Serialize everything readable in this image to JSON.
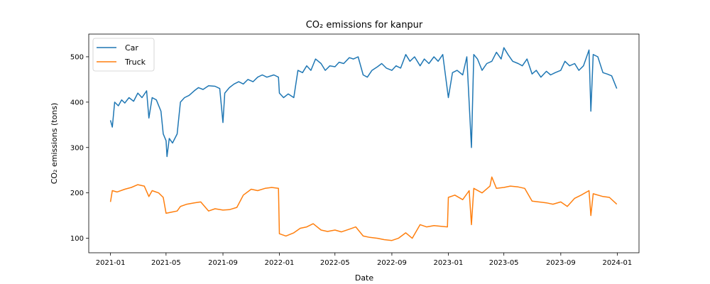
{
  "chart_data": {
    "type": "line",
    "title": "CO₂ emissions for kanpur",
    "xlabel": "Date",
    "ylabel": "CO₂ emissions (tons)",
    "xlim": [
      "2020-11-15",
      "2024-02-17"
    ],
    "ylim": [
      68,
      550
    ],
    "x_ticks": [
      "2021-01",
      "2021-05",
      "2021-09",
      "2022-01",
      "2022-05",
      "2022-09",
      "2023-01",
      "2023-05",
      "2023-09",
      "2024-01"
    ],
    "y_ticks": [
      100,
      200,
      300,
      400,
      500
    ],
    "grid": false,
    "legend_position": "top-left",
    "series": [
      {
        "name": "Car",
        "color": "#1f77b4",
        "points": [
          [
            "2021-01-01",
            360
          ],
          [
            "2021-01-05",
            345
          ],
          [
            "2021-01-10",
            400
          ],
          [
            "2021-01-18",
            392
          ],
          [
            "2021-01-25",
            405
          ],
          [
            "2021-02-01",
            398
          ],
          [
            "2021-02-10",
            410
          ],
          [
            "2021-02-20",
            402
          ],
          [
            "2021-03-01",
            420
          ],
          [
            "2021-03-10",
            410
          ],
          [
            "2021-03-20",
            425
          ],
          [
            "2021-03-25",
            365
          ],
          [
            "2021-04-01",
            410
          ],
          [
            "2021-04-10",
            405
          ],
          [
            "2021-04-20",
            380
          ],
          [
            "2021-04-25",
            330
          ],
          [
            "2021-05-01",
            315
          ],
          [
            "2021-05-03",
            280
          ],
          [
            "2021-05-08",
            320
          ],
          [
            "2021-05-15",
            310
          ],
          [
            "2021-05-25",
            330
          ],
          [
            "2021-06-01",
            400
          ],
          [
            "2021-06-10",
            410
          ],
          [
            "2021-06-20",
            415
          ],
          [
            "2021-07-01",
            425
          ],
          [
            "2021-07-10",
            432
          ],
          [
            "2021-07-20",
            428
          ],
          [
            "2021-08-01",
            436
          ],
          [
            "2021-08-15",
            435
          ],
          [
            "2021-08-25",
            430
          ],
          [
            "2021-09-01",
            355
          ],
          [
            "2021-09-05",
            420
          ],
          [
            "2021-09-15",
            432
          ],
          [
            "2021-09-25",
            440
          ],
          [
            "2021-10-05",
            445
          ],
          [
            "2021-10-15",
            440
          ],
          [
            "2021-10-25",
            450
          ],
          [
            "2021-11-05",
            445
          ],
          [
            "2021-11-15",
            455
          ],
          [
            "2021-11-25",
            460
          ],
          [
            "2021-12-05",
            455
          ],
          [
            "2021-12-20",
            460
          ],
          [
            "2021-12-30",
            455
          ],
          [
            "2022-01-01",
            420
          ],
          [
            "2022-01-10",
            410
          ],
          [
            "2022-01-20",
            418
          ],
          [
            "2022-02-01",
            410
          ],
          [
            "2022-02-10",
            470
          ],
          [
            "2022-02-20",
            465
          ],
          [
            "2022-03-01",
            480
          ],
          [
            "2022-03-10",
            470
          ],
          [
            "2022-03-20",
            495
          ],
          [
            "2022-04-01",
            485
          ],
          [
            "2022-04-10",
            470
          ],
          [
            "2022-04-20",
            480
          ],
          [
            "2022-05-01",
            478
          ],
          [
            "2022-05-10",
            488
          ],
          [
            "2022-05-20",
            485
          ],
          [
            "2022-06-01",
            498
          ],
          [
            "2022-06-10",
            495
          ],
          [
            "2022-06-20",
            500
          ],
          [
            "2022-07-01",
            460
          ],
          [
            "2022-07-10",
            455
          ],
          [
            "2022-07-20",
            470
          ],
          [
            "2022-08-01",
            478
          ],
          [
            "2022-08-10",
            485
          ],
          [
            "2022-08-20",
            475
          ],
          [
            "2022-09-01",
            470
          ],
          [
            "2022-09-10",
            480
          ],
          [
            "2022-09-20",
            475
          ],
          [
            "2022-10-01",
            505
          ],
          [
            "2022-10-10",
            490
          ],
          [
            "2022-10-20",
            500
          ],
          [
            "2022-11-01",
            480
          ],
          [
            "2022-11-10",
            495
          ],
          [
            "2022-11-20",
            485
          ],
          [
            "2022-12-01",
            500
          ],
          [
            "2022-12-10",
            490
          ],
          [
            "2022-12-20",
            505
          ],
          [
            "2023-01-01",
            410
          ],
          [
            "2023-01-10",
            465
          ],
          [
            "2023-01-20",
            470
          ],
          [
            "2023-02-01",
            460
          ],
          [
            "2023-02-10",
            500
          ],
          [
            "2023-02-20",
            300
          ],
          [
            "2023-02-25",
            505
          ],
          [
            "2023-03-05",
            495
          ],
          [
            "2023-03-15",
            470
          ],
          [
            "2023-03-25",
            485
          ],
          [
            "2023-04-05",
            490
          ],
          [
            "2023-04-15",
            510
          ],
          [
            "2023-04-25",
            495
          ],
          [
            "2023-05-01",
            520
          ],
          [
            "2023-05-10",
            505
          ],
          [
            "2023-05-20",
            490
          ],
          [
            "2023-06-01",
            485
          ],
          [
            "2023-06-10",
            480
          ],
          [
            "2023-06-20",
            495
          ],
          [
            "2023-07-01",
            462
          ],
          [
            "2023-07-10",
            470
          ],
          [
            "2023-07-20",
            455
          ],
          [
            "2023-08-01",
            468
          ],
          [
            "2023-08-10",
            460
          ],
          [
            "2023-08-20",
            465
          ],
          [
            "2023-09-01",
            470
          ],
          [
            "2023-09-10",
            490
          ],
          [
            "2023-09-20",
            480
          ],
          [
            "2023-10-01",
            485
          ],
          [
            "2023-10-10",
            470
          ],
          [
            "2023-10-20",
            480
          ],
          [
            "2023-11-01",
            515
          ],
          [
            "2023-11-05",
            380
          ],
          [
            "2023-11-10",
            505
          ],
          [
            "2023-11-20",
            500
          ],
          [
            "2023-12-01",
            465
          ],
          [
            "2023-12-10",
            462
          ],
          [
            "2023-12-20",
            458
          ],
          [
            "2023-12-31",
            430
          ]
        ]
      },
      {
        "name": "Truck",
        "color": "#ff7f0e",
        "points": [
          [
            "2021-01-01",
            180
          ],
          [
            "2021-01-05",
            205
          ],
          [
            "2021-01-15",
            202
          ],
          [
            "2021-02-01",
            208
          ],
          [
            "2021-02-15",
            212
          ],
          [
            "2021-03-01",
            218
          ],
          [
            "2021-03-15",
            215
          ],
          [
            "2021-03-25",
            192
          ],
          [
            "2021-04-01",
            205
          ],
          [
            "2021-04-15",
            200
          ],
          [
            "2021-04-25",
            190
          ],
          [
            "2021-05-01",
            155
          ],
          [
            "2021-05-15",
            158
          ],
          [
            "2021-05-25",
            160
          ],
          [
            "2021-06-01",
            170
          ],
          [
            "2021-06-15",
            175
          ],
          [
            "2021-07-01",
            178
          ],
          [
            "2021-07-15",
            180
          ],
          [
            "2021-08-01",
            160
          ],
          [
            "2021-08-15",
            165
          ],
          [
            "2021-09-01",
            162
          ],
          [
            "2021-09-15",
            163
          ],
          [
            "2021-10-01",
            168
          ],
          [
            "2021-10-15",
            195
          ],
          [
            "2021-11-01",
            208
          ],
          [
            "2021-11-15",
            205
          ],
          [
            "2021-12-01",
            210
          ],
          [
            "2021-12-15",
            212
          ],
          [
            "2021-12-30",
            210
          ],
          [
            "2022-01-01",
            110
          ],
          [
            "2022-01-15",
            105
          ],
          [
            "2022-02-01",
            112
          ],
          [
            "2022-02-15",
            122
          ],
          [
            "2022-03-01",
            125
          ],
          [
            "2022-03-15",
            132
          ],
          [
            "2022-04-01",
            118
          ],
          [
            "2022-04-15",
            115
          ],
          [
            "2022-05-01",
            118
          ],
          [
            "2022-05-15",
            114
          ],
          [
            "2022-06-01",
            120
          ],
          [
            "2022-06-15",
            125
          ],
          [
            "2022-07-01",
            105
          ],
          [
            "2022-07-15",
            102
          ],
          [
            "2022-08-01",
            100
          ],
          [
            "2022-08-15",
            97
          ],
          [
            "2022-09-01",
            95
          ],
          [
            "2022-09-15",
            100
          ],
          [
            "2022-10-01",
            112
          ],
          [
            "2022-10-15",
            100
          ],
          [
            "2022-11-01",
            130
          ],
          [
            "2022-11-15",
            125
          ],
          [
            "2022-12-01",
            128
          ],
          [
            "2022-12-30",
            125
          ],
          [
            "2023-01-01",
            190
          ],
          [
            "2023-01-15",
            195
          ],
          [
            "2023-02-01",
            185
          ],
          [
            "2023-02-15",
            205
          ],
          [
            "2023-02-20",
            130
          ],
          [
            "2023-02-25",
            210
          ],
          [
            "2023-03-15",
            200
          ],
          [
            "2023-04-01",
            215
          ],
          [
            "2023-04-05",
            235
          ],
          [
            "2023-04-15",
            210
          ],
          [
            "2023-05-01",
            212
          ],
          [
            "2023-05-15",
            215
          ],
          [
            "2023-06-01",
            213
          ],
          [
            "2023-06-15",
            210
          ],
          [
            "2023-07-01",
            182
          ],
          [
            "2023-07-15",
            180
          ],
          [
            "2023-08-01",
            178
          ],
          [
            "2023-08-15",
            175
          ],
          [
            "2023-09-01",
            180
          ],
          [
            "2023-09-15",
            170
          ],
          [
            "2023-10-01",
            188
          ],
          [
            "2023-10-15",
            195
          ],
          [
            "2023-11-01",
            205
          ],
          [
            "2023-11-05",
            150
          ],
          [
            "2023-11-10",
            198
          ],
          [
            "2023-12-01",
            192
          ],
          [
            "2023-12-15",
            190
          ],
          [
            "2023-12-31",
            175
          ]
        ]
      }
    ]
  }
}
